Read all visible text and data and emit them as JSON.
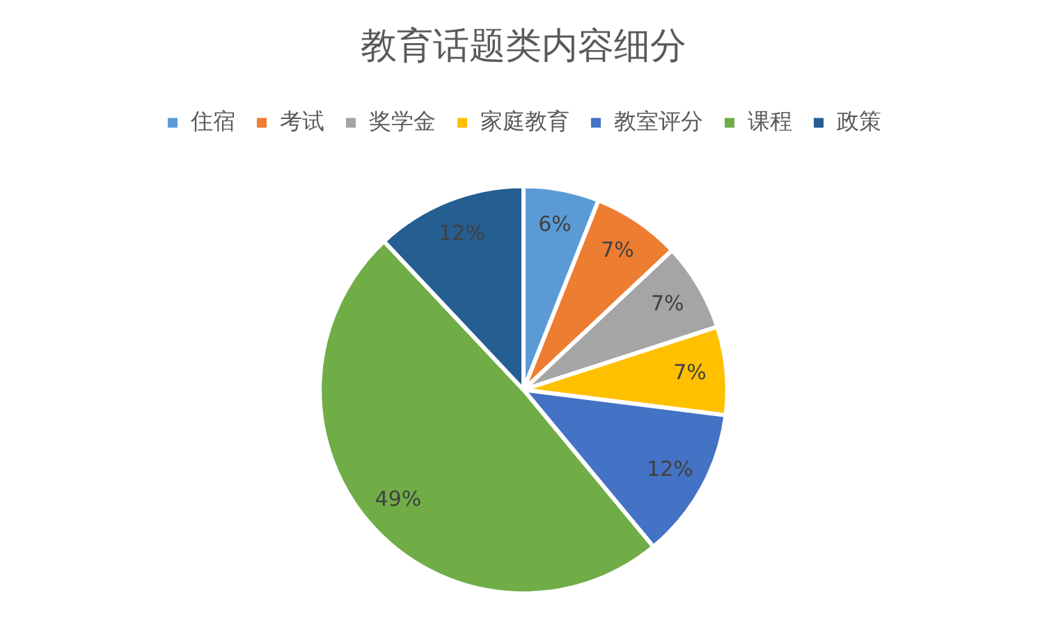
{
  "chart_data": {
    "type": "pie",
    "title": "教育话题类内容细分",
    "categories": [
      "住宿",
      "考试",
      "奖学金",
      "家庭教育",
      "教室评分",
      "课程",
      "政策"
    ],
    "values": [
      6,
      7,
      7,
      7,
      12,
      49,
      12
    ],
    "colors": [
      "#5b9bd5",
      "#ed7d31",
      "#a5a5a5",
      "#ffc000",
      "#4472c4",
      "#70ad47",
      "#255e91"
    ],
    "value_labels": [
      "6%",
      "7%",
      "7%",
      "7%",
      "12%",
      "49%",
      "12%"
    ],
    "legend": "top"
  }
}
